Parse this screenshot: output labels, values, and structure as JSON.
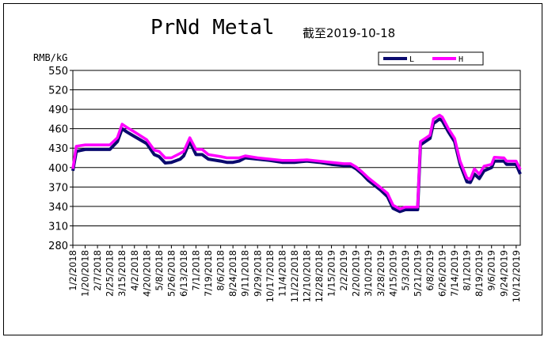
{
  "chart_data": {
    "type": "line",
    "title": "PrNd Metal",
    "subtitle": "截至2019-10-18",
    "ylabel": "RMB/kG",
    "ylim": [
      280,
      550
    ],
    "yticks": [
      280,
      310,
      340,
      370,
      400,
      430,
      460,
      490,
      520,
      550
    ],
    "grid": true,
    "legend_position": "top-right",
    "x_tick_labels": [
      "1/2/2018",
      "1/20/2018",
      "2/7/2018",
      "2/25/2018",
      "3/15/2018",
      "4/2/2018",
      "4/20/2018",
      "5/8/2018",
      "5/26/2018",
      "6/13/2018",
      "7/1/2018",
      "7/19/2018",
      "8/6/2018",
      "8/24/2018",
      "9/11/2018",
      "9/29/2018",
      "10/17/2018",
      "11/4/2018",
      "11/22/2018",
      "12/10/2018",
      "12/28/2018",
      "1/15/2019",
      "2/2/2019",
      "2/20/2019",
      "3/10/2019",
      "3/28/2019",
      "4/15/2019",
      "5/3/2019",
      "5/21/2019",
      "6/8/2019",
      "6/26/2019",
      "7/14/2019",
      "8/1/2019",
      "8/19/2019",
      "9/6/2019",
      "9/24/2019",
      "10/12/2019"
    ],
    "x_domain": [
      "1/2/2018",
      "10/18/2019"
    ],
    "series": [
      {
        "name": "L",
        "color": "#0a0a6e",
        "points": [
          [
            "1/2/2018",
            395
          ],
          [
            "1/7/2018",
            425
          ],
          [
            "1/20/2018",
            428
          ],
          [
            "2/7/2018",
            428
          ],
          [
            "2/25/2018",
            428
          ],
          [
            "3/8/2018",
            440
          ],
          [
            "3/15/2018",
            460
          ],
          [
            "3/22/2018",
            455
          ],
          [
            "4/2/2018",
            448
          ],
          [
            "4/20/2018",
            437
          ],
          [
            "5/1/2018",
            420
          ],
          [
            "5/8/2018",
            417
          ],
          [
            "5/17/2018",
            407
          ],
          [
            "5/26/2018",
            408
          ],
          [
            "6/8/2018",
            413
          ],
          [
            "6/13/2018",
            418
          ],
          [
            "6/22/2018",
            440
          ],
          [
            "7/1/2018",
            420
          ],
          [
            "7/10/2018",
            420
          ],
          [
            "7/19/2018",
            413
          ],
          [
            "8/6/2018",
            410
          ],
          [
            "8/15/2018",
            408
          ],
          [
            "8/24/2018",
            408
          ],
          [
            "9/2/2018",
            410
          ],
          [
            "9/11/2018",
            415
          ],
          [
            "9/29/2018",
            413
          ],
          [
            "10/17/2018",
            411
          ],
          [
            "11/4/2018",
            408
          ],
          [
            "11/22/2018",
            408
          ],
          [
            "12/10/2018",
            410
          ],
          [
            "12/28/2018",
            408
          ],
          [
            "1/15/2019",
            405
          ],
          [
            "2/2/2019",
            403
          ],
          [
            "2/12/2019",
            403
          ],
          [
            "2/20/2019",
            398
          ],
          [
            "3/1/2019",
            390
          ],
          [
            "3/10/2019",
            380
          ],
          [
            "3/28/2019",
            365
          ],
          [
            "4/7/2019",
            355
          ],
          [
            "4/15/2019",
            337
          ],
          [
            "4/25/2019",
            332
          ],
          [
            "5/3/2019",
            335
          ],
          [
            "5/11/2019",
            335
          ],
          [
            "5/21/2019",
            335
          ],
          [
            "5/25/2019",
            435
          ],
          [
            "6/1/2019",
            440
          ],
          [
            "6/8/2019",
            445
          ],
          [
            "6/13/2019",
            468
          ],
          [
            "6/22/2019",
            475
          ],
          [
            "6/26/2019",
            472
          ],
          [
            "7/5/2019",
            455
          ],
          [
            "7/14/2019",
            440
          ],
          [
            "7/22/2019",
            405
          ],
          [
            "8/1/2019",
            378
          ],
          [
            "8/6/2019",
            377
          ],
          [
            "8/12/2019",
            390
          ],
          [
            "8/19/2019",
            383
          ],
          [
            "8/26/2019",
            395
          ],
          [
            "9/6/2019",
            400
          ],
          [
            "9/10/2019",
            410
          ],
          [
            "9/24/2019",
            410
          ],
          [
            "9/28/2019",
            405
          ],
          [
            "10/12/2019",
            405
          ],
          [
            "10/18/2019",
            390
          ]
        ]
      },
      {
        "name": "H",
        "color": "#ff00ff",
        "points": [
          [
            "1/2/2018",
            398
          ],
          [
            "1/7/2018",
            433
          ],
          [
            "1/20/2018",
            435
          ],
          [
            "2/7/2018",
            435
          ],
          [
            "2/25/2018",
            435
          ],
          [
            "3/8/2018",
            446
          ],
          [
            "3/15/2018",
            467
          ],
          [
            "3/22/2018",
            462
          ],
          [
            "4/2/2018",
            455
          ],
          [
            "4/20/2018",
            443
          ],
          [
            "5/1/2018",
            427
          ],
          [
            "5/8/2018",
            425
          ],
          [
            "5/17/2018",
            415
          ],
          [
            "5/26/2018",
            415
          ],
          [
            "6/8/2018",
            422
          ],
          [
            "6/13/2018",
            425
          ],
          [
            "6/22/2018",
            446
          ],
          [
            "7/1/2018",
            428
          ],
          [
            "7/10/2018",
            428
          ],
          [
            "7/19/2018",
            420
          ],
          [
            "8/6/2018",
            417
          ],
          [
            "8/15/2018",
            415
          ],
          [
            "8/24/2018",
            415
          ],
          [
            "9/2/2018",
            415
          ],
          [
            "9/11/2018",
            418
          ],
          [
            "9/29/2018",
            415
          ],
          [
            "10/17/2018",
            413
          ],
          [
            "11/4/2018",
            411
          ],
          [
            "11/22/2018",
            411
          ],
          [
            "12/10/2018",
            412
          ],
          [
            "12/28/2018",
            410
          ],
          [
            "1/15/2019",
            408
          ],
          [
            "2/2/2019",
            406
          ],
          [
            "2/12/2019",
            406
          ],
          [
            "2/20/2019",
            401
          ],
          [
            "3/1/2019",
            393
          ],
          [
            "3/10/2019",
            384
          ],
          [
            "3/28/2019",
            369
          ],
          [
            "4/7/2019",
            360
          ],
          [
            "4/15/2019",
            342
          ],
          [
            "4/25/2019",
            336
          ],
          [
            "5/3/2019",
            339
          ],
          [
            "5/11/2019",
            339
          ],
          [
            "5/21/2019",
            339
          ],
          [
            "5/25/2019",
            440
          ],
          [
            "6/1/2019",
            445
          ],
          [
            "6/8/2019",
            450
          ],
          [
            "6/13/2019",
            475
          ],
          [
            "6/22/2019",
            481
          ],
          [
            "6/26/2019",
            478
          ],
          [
            "7/5/2019",
            460
          ],
          [
            "7/14/2019",
            445
          ],
          [
            "7/22/2019",
            410
          ],
          [
            "8/1/2019",
            384
          ],
          [
            "8/6/2019",
            382
          ],
          [
            "8/12/2019",
            398
          ],
          [
            "8/19/2019",
            390
          ],
          [
            "8/26/2019",
            402
          ],
          [
            "9/6/2019",
            405
          ],
          [
            "9/10/2019",
            416
          ],
          [
            "9/24/2019",
            415
          ],
          [
            "9/28/2019",
            410
          ],
          [
            "10/12/2019",
            410
          ],
          [
            "10/18/2019",
            397
          ]
        ]
      }
    ]
  }
}
